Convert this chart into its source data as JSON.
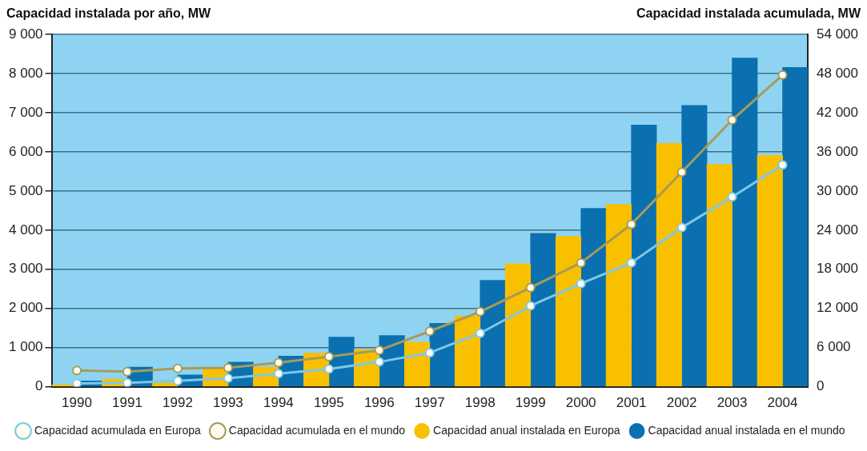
{
  "chart_data": {
    "type": "bar",
    "ylabel": "Capacidad instalada por año, MW",
    "y2label": "Capacidad instalada acumulada, MW",
    "categories": [
      "1990",
      "1991",
      "1992",
      "1993",
      "1994",
      "1995",
      "1996",
      "1997",
      "1998",
      "1999",
      "2000",
      "2001",
      "2002",
      "2003",
      "2004"
    ],
    "series": [
      {
        "name": "Capacidad anual instalada en Europa",
        "color": "#f9c000",
        "values": [
          50,
          190,
          90,
          460,
          500,
          860,
          950,
          1140,
          1810,
          3140,
          3840,
          4660,
          6220,
          5680,
          5910
        ]
      },
      {
        "name": "Capacidad anual instalada en el mundo",
        "color": "#0a70b0",
        "values": [
          150,
          500,
          300,
          630,
          780,
          1270,
          1310,
          1620,
          2720,
          3920,
          4560,
          6690,
          7190,
          8400,
          8160
        ]
      },
      {
        "name": "Capacidad acumulada en Europa",
        "type": "line",
        "axis": "y2",
        "color": "#7ec8e8",
        "values": [
          500,
          600,
          900,
          1300,
          2000,
          2700,
          3800,
          5200,
          8200,
          12400,
          15800,
          19000,
          24400,
          29100,
          34000
        ]
      },
      {
        "name": "Capacidad acumulada en el mundo",
        "type": "line",
        "axis": "y2",
        "color": "#a79b5a",
        "values": [
          2500,
          2300,
          2800,
          2900,
          3700,
          4600,
          5600,
          8500,
          11500,
          15200,
          19000,
          24900,
          32900,
          40900,
          47800
        ]
      }
    ],
    "ylim": [
      0,
      9000
    ],
    "yticks": [
      0,
      {
        "value": 1000,
        "label": "1 000"
      },
      {
        "value": 2000,
        "label": "2 000"
      },
      {
        "value": 3000,
        "label": "3 000"
      },
      {
        "value": 4000,
        "label": "4 000"
      },
      {
        "value": 5000,
        "label": "5 000"
      },
      {
        "value": 6000,
        "label": "6 000"
      },
      {
        "value": 7000,
        "label": "7 000"
      },
      {
        "value": 8000,
        "label": "8 000"
      },
      {
        "value": 9000,
        "label": "9 000"
      }
    ],
    "y2lim": [
      0,
      54000
    ],
    "y2ticks": [
      0,
      {
        "value": 6000,
        "label": "6 000"
      },
      {
        "value": 12000,
        "label": "12 000"
      },
      {
        "value": 18000,
        "label": "18 000"
      },
      {
        "value": 24000,
        "label": "24 000"
      },
      {
        "value": 30000,
        "label": "30 000"
      },
      {
        "value": 36000,
        "label": "36 000"
      },
      {
        "value": 42000,
        "label": "42 000"
      },
      {
        "value": 48000,
        "label": "48 000"
      },
      {
        "value": 54000,
        "label": "54 000"
      }
    ],
    "grid": "y",
    "legend": "bottom",
    "marker": "circle",
    "line_style": "solid"
  }
}
